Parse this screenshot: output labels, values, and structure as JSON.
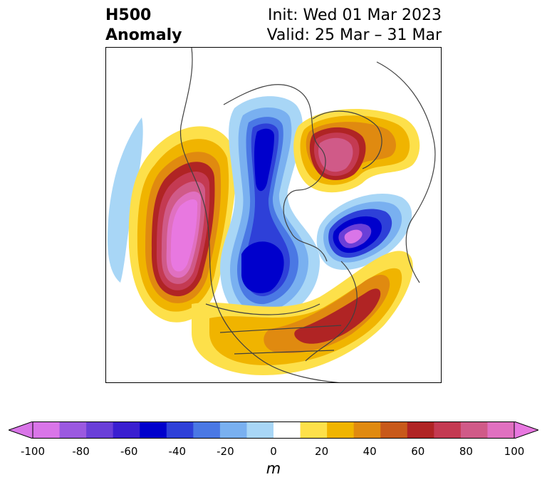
{
  "header": {
    "title_line1": "H500",
    "title_line2": "Anomaly",
    "init_text": "Init: Wed 01 Mar 2023",
    "valid_text": "Valid: 25 Mar – 31 Mar"
  },
  "map": {
    "projection": "polar stereographic (North America)",
    "features": [
      "pink-high-west-coast",
      "blue-trough-hudson",
      "red-high-greenland",
      "purple-low-north-atlantic",
      "red-high-atlantic"
    ]
  },
  "colorbar": {
    "ticks": [
      "-100",
      "-80",
      "-60",
      "-40",
      "-20",
      "0",
      "20",
      "40",
      "60",
      "80",
      "100"
    ],
    "units": "m",
    "colors": [
      "#d975e8",
      "#9b59e0",
      "#6a3fd8",
      "#3a1fd0",
      "#0000cc",
      "#2e40d8",
      "#4a78e4",
      "#79b0f0",
      "#a8d6f6",
      "#ffffff",
      "#fde04a",
      "#f0b400",
      "#e08a10",
      "#c8591a",
      "#b02424",
      "#c43a52",
      "#d05a88",
      "#e070c0"
    ],
    "colors_end": "#e878e0"
  }
}
